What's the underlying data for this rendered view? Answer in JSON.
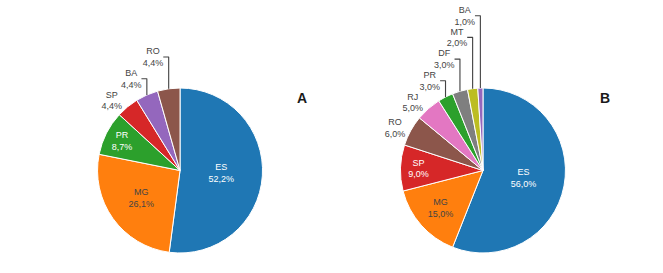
{
  "chart_data": [
    {
      "type": "pie",
      "title": "A",
      "categories": [
        "ES",
        "MG",
        "PR",
        "SP",
        "BA",
        "RO"
      ],
      "values": [
        52.2,
        26.1,
        8.7,
        4.4,
        4.4,
        4.4
      ],
      "value_labels": [
        "52,2%",
        "26,1%",
        "8,7%",
        "4,4%",
        "4,4%",
        "4,4%"
      ],
      "data_labels": true
    },
    {
      "type": "pie",
      "title": "B",
      "categories": [
        "ES",
        "MG",
        "SP",
        "RO",
        "RJ",
        "PR",
        "DF",
        "MT",
        "BA"
      ],
      "values": [
        56.0,
        15.0,
        9.0,
        6.0,
        5.0,
        3.0,
        3.0,
        2.0,
        1.0
      ],
      "value_labels": [
        "56,0%",
        "15,0%",
        "9,0%",
        "6,0%",
        "5,0%",
        "3,0%",
        "3,0%",
        "2,0%",
        "1,0%"
      ],
      "data_labels": true
    }
  ]
}
